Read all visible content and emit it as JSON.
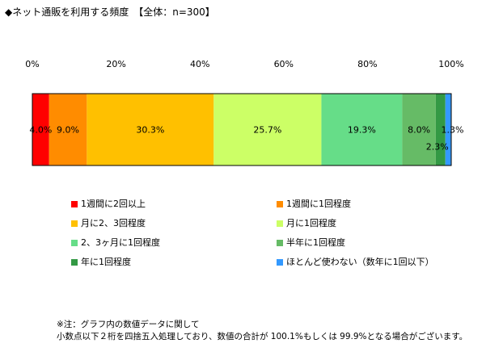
{
  "title": "◆ネット通販を利用する頻度　【全体：n=300】",
  "chart_data": {
    "type": "bar",
    "orientation": "horizontal-stacked-100",
    "title": "◆ネット通販を利用する頻度　【全体：n=300】",
    "xlim": [
      0,
      100
    ],
    "ticks": [
      "0%",
      "20%",
      "40%",
      "60%",
      "80%",
      "100%"
    ],
    "tick_values": [
      0,
      20,
      40,
      60,
      80,
      100
    ],
    "legend_position": "bottom",
    "series": [
      {
        "name": "1週間に2回以上",
        "value": 4.0,
        "label": "4.0%",
        "color": "#ff0000"
      },
      {
        "name": "1週間に1回程度",
        "value": 9.0,
        "label": "9.0%",
        "color": "#ff8c00"
      },
      {
        "name": "月に2、3回程度",
        "value": 30.3,
        "label": "30.3%",
        "color": "#ffc000"
      },
      {
        "name": "月に1回程度",
        "value": 25.7,
        "label": "25.7%",
        "color": "#ccff66"
      },
      {
        "name": "2、3ヶ月に1回程度",
        "value": 19.3,
        "label": "19.3%",
        "color": "#66dd88"
      },
      {
        "name": "半年に1回程度",
        "value": 8.0,
        "label": "8.0%",
        "color": "#66bb66"
      },
      {
        "name": "年に1回程度",
        "value": 2.3,
        "label": "2.3%",
        "color": "#339944"
      },
      {
        "name": "ほとんど使わない（数年に1回以下）",
        "value": 1.3,
        "label": "1.3%",
        "color": "#3399ff"
      }
    ]
  },
  "note": {
    "line1": "※注：グラフ内の数値データに関して",
    "line2": "小数点以下２桁を四捨五入処理しており、数値の合計が 100.1%もしくは 99.9%となる場合がございます。"
  }
}
